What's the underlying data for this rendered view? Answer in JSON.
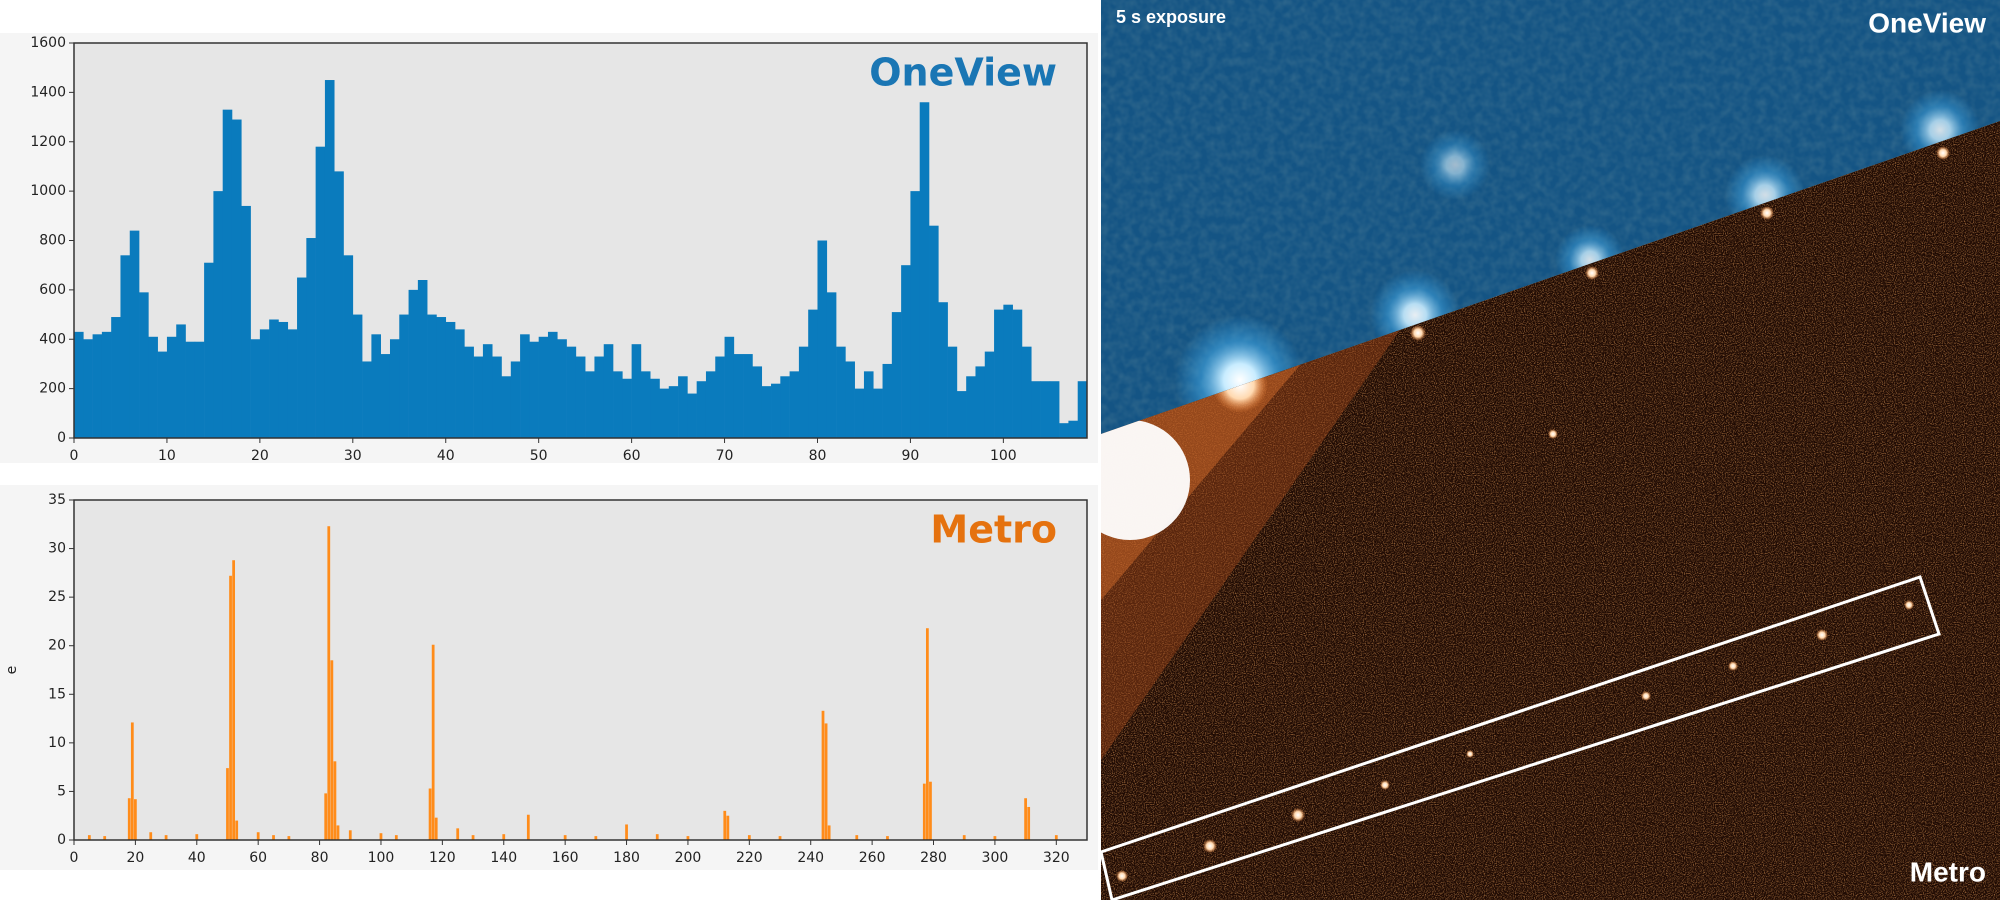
{
  "chart_data": [
    {
      "type": "histogram",
      "title": "OneView",
      "title_color": "#1a76b4",
      "color": "#0a7bbd",
      "bins": [
        0,
        1,
        2,
        3,
        4,
        5,
        6,
        7,
        8,
        9,
        10,
        11,
        12,
        13,
        14,
        15,
        16,
        17,
        18,
        19,
        20,
        21,
        22,
        23,
        24,
        25,
        26,
        27,
        28,
        29,
        30,
        31,
        32,
        33,
        34,
        35,
        36,
        37,
        38,
        39,
        40,
        41,
        42,
        43,
        44,
        45,
        46,
        47,
        48,
        49,
        50,
        51,
        52,
        53,
        54,
        55,
        56,
        57,
        58,
        59,
        60,
        61,
        62,
        63,
        64,
        65,
        66,
        67,
        68,
        69,
        70,
        71,
        72,
        73,
        74,
        75,
        76,
        77,
        78,
        79,
        80,
        81,
        82,
        83,
        84,
        85,
        86,
        87,
        88,
        89,
        90,
        91,
        92,
        93,
        94,
        95,
        96,
        97,
        98,
        99,
        100,
        101,
        102,
        103,
        104,
        105,
        106,
        107,
        108,
        109
      ],
      "values": [
        430,
        400,
        420,
        430,
        490,
        740,
        840,
        590,
        410,
        350,
        410,
        460,
        390,
        390,
        710,
        1000,
        1330,
        1290,
        940,
        400,
        440,
        480,
        470,
        440,
        650,
        810,
        1180,
        1450,
        1080,
        740,
        500,
        310,
        420,
        340,
        400,
        500,
        600,
        640,
        500,
        490,
        470,
        440,
        370,
        330,
        380,
        330,
        250,
        310,
        420,
        390,
        410,
        430,
        400,
        370,
        330,
        270,
        330,
        380,
        270,
        240,
        380,
        270,
        240,
        200,
        210,
        250,
        180,
        230,
        270,
        330,
        410,
        340,
        340,
        290,
        210,
        220,
        250,
        270,
        370,
        520,
        800,
        590,
        370,
        310,
        200,
        270,
        200,
        300,
        510,
        700,
        1000,
        1360,
        860,
        550,
        370,
        190,
        250,
        290,
        350,
        520,
        540,
        520,
        370,
        230,
        230,
        230,
        60,
        70,
        230
      ],
      "xlim": [
        0,
        109
      ],
      "xticks": [
        0,
        10,
        20,
        30,
        40,
        50,
        60,
        70,
        80,
        90,
        100
      ],
      "ylim": [
        0,
        1600
      ],
      "yticks": [
        0,
        200,
        400,
        600,
        800,
        1000,
        1200,
        1400,
        1600
      ]
    },
    {
      "type": "bar",
      "title": "Metro",
      "title_color": "#e5720f",
      "color": "#ff8c1a",
      "y_label": "e",
      "x": [
        5,
        10,
        18,
        19,
        20,
        25,
        30,
        40,
        50,
        51,
        52,
        53,
        60,
        65,
        70,
        82,
        83,
        84,
        85,
        86,
        90,
        100,
        105,
        116,
        117,
        118,
        125,
        130,
        140,
        148,
        160,
        170,
        180,
        190,
        200,
        212,
        213,
        220,
        230,
        244,
        245,
        246,
        255,
        265,
        277,
        278,
        279,
        290,
        300,
        310,
        311,
        320
      ],
      "values": [
        0.5,
        0.4,
        4.3,
        12.1,
        4.2,
        0.8,
        0.5,
        0.6,
        7.4,
        27.2,
        28.8,
        2,
        0.8,
        0.5,
        0.4,
        4.8,
        32.3,
        18.5,
        8.1,
        1.5,
        1,
        0.7,
        0.5,
        5.3,
        20.1,
        2.3,
        1.2,
        0.5,
        0.6,
        2.6,
        0.5,
        0.4,
        1.6,
        0.6,
        0.4,
        3,
        2.5,
        0.5,
        0.4,
        13.3,
        12,
        1.5,
        0.5,
        0.4,
        5.8,
        21.8,
        6,
        0.5,
        0.4,
        4.3,
        3.4,
        0.5
      ],
      "xlim": [
        0,
        330
      ],
      "xticks": [
        0,
        20,
        40,
        60,
        80,
        100,
        120,
        140,
        160,
        180,
        200,
        220,
        240,
        260,
        280,
        300,
        320
      ],
      "ylim": [
        0,
        35
      ],
      "yticks": [
        0,
        5,
        10,
        15,
        20,
        25,
        30,
        35
      ]
    }
  ],
  "image": {
    "caption": "5 s exposure",
    "top_label": "OneView",
    "bottom_label": "Metro"
  }
}
